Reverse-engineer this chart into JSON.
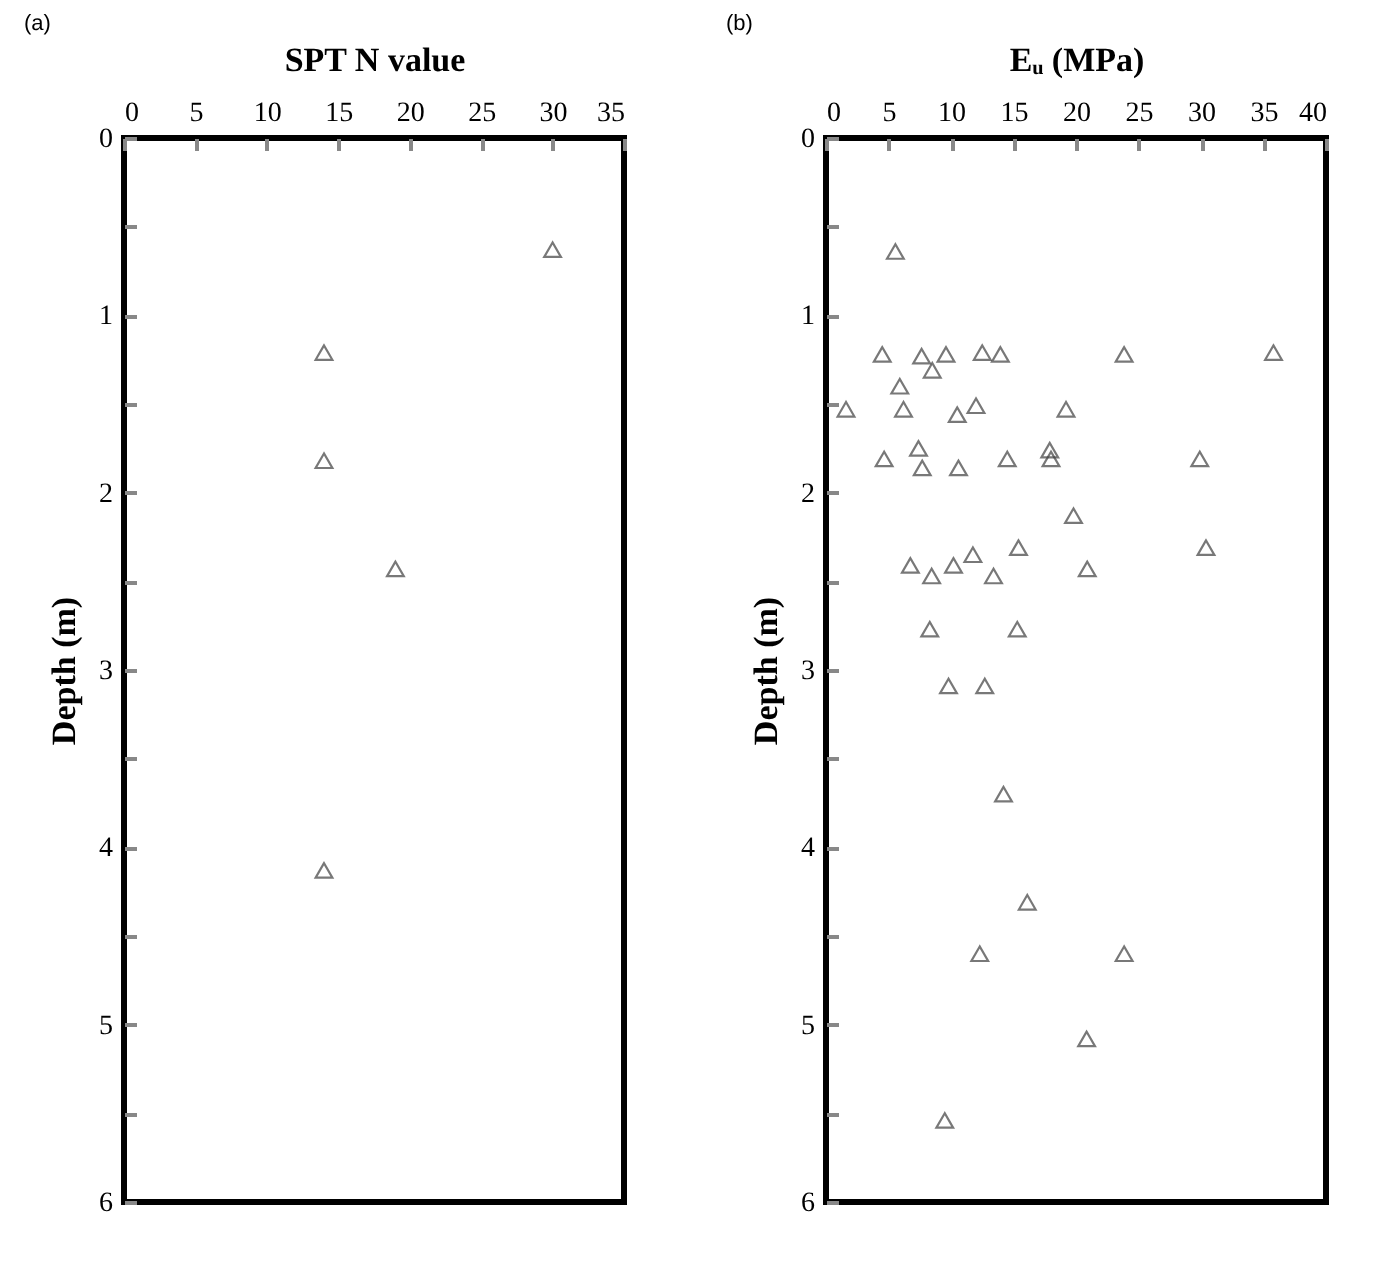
{
  "chart_data": [
    {
      "type": "scatter",
      "title": "(a)",
      "xlabel": "SPT N value",
      "ylabel": "Depth (m)",
      "xlim": [
        0,
        35
      ],
      "xticks": [
        0,
        5,
        10,
        15,
        20,
        25,
        30,
        35
      ],
      "ylim": [
        6,
        0
      ],
      "yticks": [
        0,
        {
          "value": 0.5,
          "label": null
        },
        1,
        {
          "value": 1.5,
          "label": null
        },
        2,
        {
          "value": 2.5,
          "label": null
        },
        3,
        {
          "value": 3.5,
          "label": null
        },
        4,
        {
          "value": 4.5,
          "label": null
        },
        5,
        {
          "value": 5.5,
          "label": null
        },
        6
      ],
      "marker": "triangle",
      "grid": false,
      "series": [
        {
          "color": "#404040",
          "x": [
            30,
            14,
            14,
            19,
            14
          ],
          "values": [
            0.63,
            1.21,
            1.82,
            2.43,
            4.13
          ]
        }
      ]
    },
    {
      "type": "scatter",
      "title": "(b)",
      "xlabel": "Eᵤ (MPa)",
      "ylabel": "Depth (m)",
      "xlim": [
        0,
        40
      ],
      "xticks": [
        0,
        5,
        10,
        15,
        20,
        25,
        30,
        35,
        40
      ],
      "ylim": [
        6,
        0
      ],
      "yticks": [
        0,
        {
          "value": 0.5,
          "label": null
        },
        1,
        {
          "value": 1.5,
          "label": null
        },
        2,
        {
          "value": 2.5,
          "label": null
        },
        3,
        {
          "value": 3.5,
          "label": null
        },
        4,
        {
          "value": 4.5,
          "label": null
        },
        5,
        {
          "value": 5.5,
          "label": null
        },
        6
      ],
      "marker": "triangle",
      "grid": false,
      "series": [
        {
          "color": "#404040",
          "x": [
            5.55,
            4.5,
            7.65,
            9.6,
            8.5,
            12.5,
            13.95,
            23.85,
            35.8,
            5.9,
            1.6,
            6.2,
            10.5,
            12.0,
            19.2,
            7.4,
            4.65,
            7.7,
            10.6,
            14.5,
            17.9,
            18.0,
            29.9,
            19.8,
            15.4,
            30.4,
            6.75,
            8.45,
            10.2,
            11.75,
            13.4,
            20.9,
            8.3,
            15.3,
            9.8,
            12.7,
            14.2,
            16.1,
            12.3,
            23.85,
            20.85,
            9.5
          ],
          "values": [
            0.64,
            1.22,
            1.23,
            1.22,
            1.31,
            1.21,
            1.22,
            1.22,
            1.21,
            1.4,
            1.53,
            1.53,
            1.56,
            1.51,
            1.53,
            1.75,
            1.81,
            1.86,
            1.86,
            1.81,
            1.76,
            1.81,
            1.81,
            2.13,
            2.31,
            2.31,
            2.41,
            2.47,
            2.41,
            2.35,
            2.47,
            2.43,
            2.77,
            2.77,
            3.09,
            3.09,
            3.7,
            4.31,
            4.6,
            4.6,
            5.08,
            5.54
          ]
        }
      ]
    }
  ]
}
